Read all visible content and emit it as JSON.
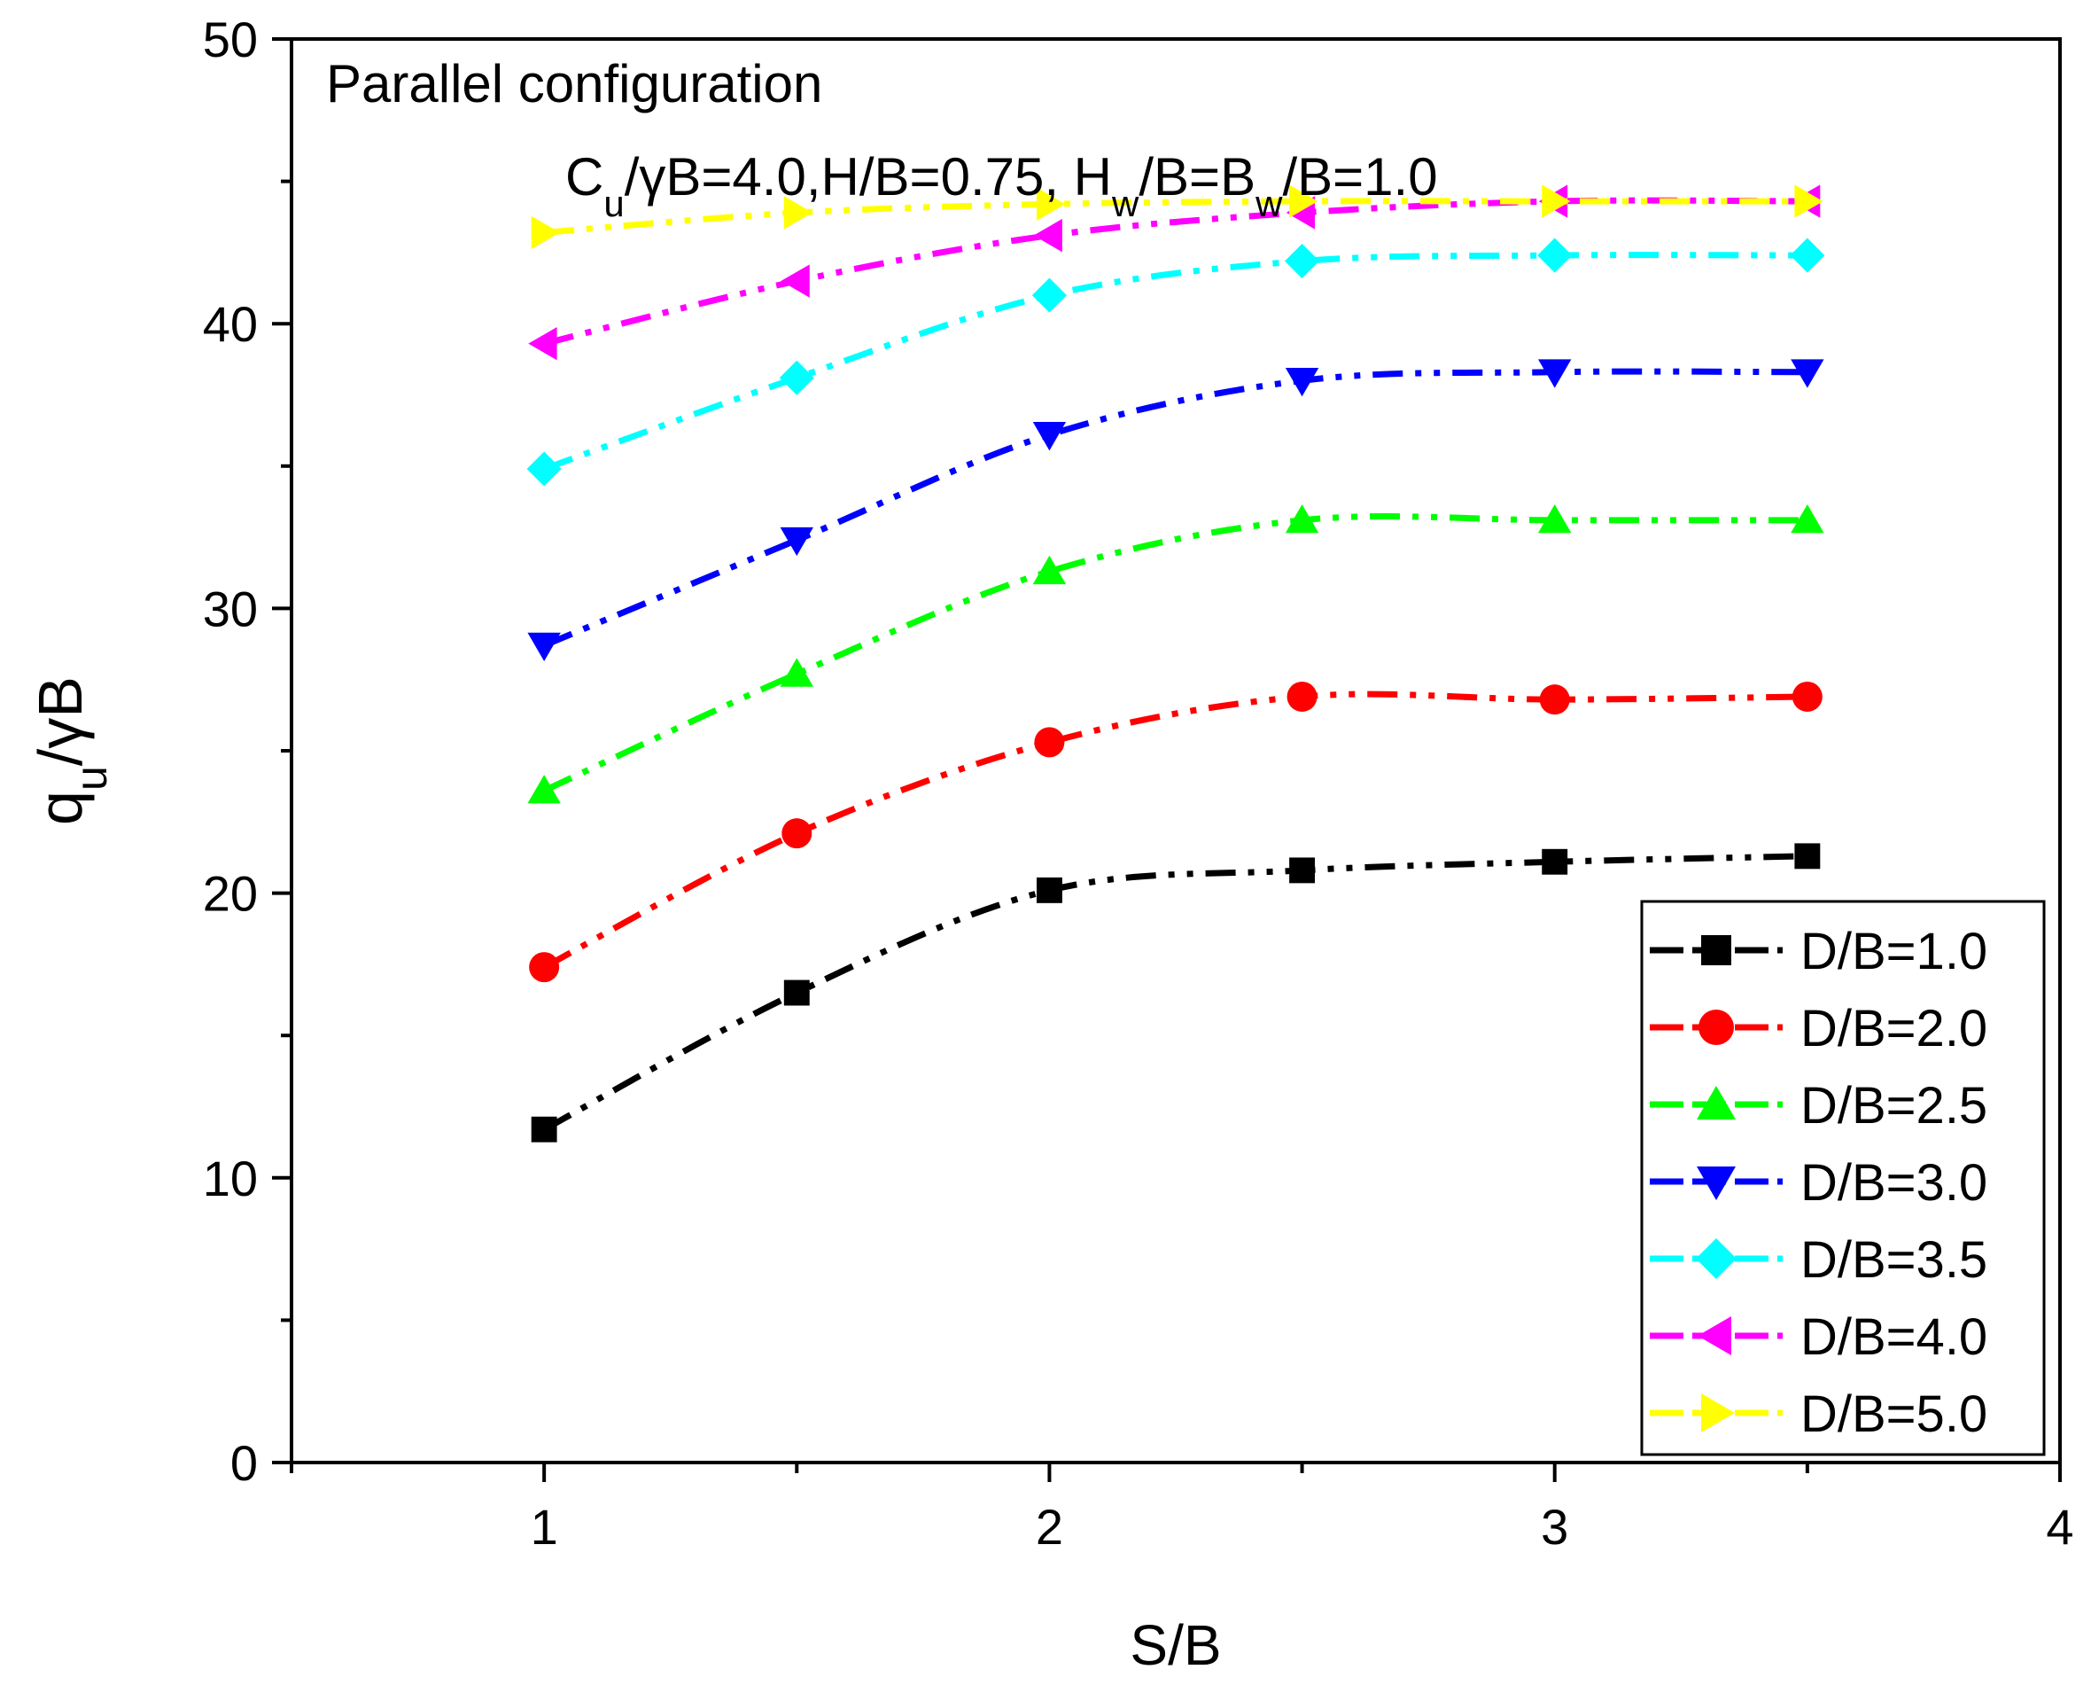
{
  "chart_data": {
    "type": "line",
    "title": "Parallel configuration",
    "subtitle": {
      "parts": [
        {
          "text": "C",
          "sub": false
        },
        {
          "text": "u",
          "sub": true
        },
        {
          "text": "/γB=4.0,H/B=0.75, H",
          "sub": false
        },
        {
          "text": "w",
          "sub": true
        },
        {
          "text": "/B=B",
          "sub": false
        },
        {
          "text": "w",
          "sub": true
        },
        {
          "text": "/B=1.0",
          "sub": false
        }
      ]
    },
    "xlabel": "S/B",
    "ylabel": {
      "parts": [
        {
          "text": "q",
          "sub": false
        },
        {
          "text": "u",
          "sub": true
        },
        {
          "text": "/γB",
          "sub": false
        }
      ]
    },
    "xlim": [
      0.5,
      4
    ],
    "ylim": [
      0,
      50
    ],
    "xticks": [
      1,
      2,
      3,
      4
    ],
    "yticks": [
      0,
      10,
      20,
      30,
      40,
      50
    ],
    "grid": false,
    "legend_position": "bottom-right",
    "x": [
      1,
      1.5,
      2,
      2.5,
      3,
      3.5
    ],
    "series": [
      {
        "name": "D/B=1.0",
        "color": "#000000",
        "marker": "square",
        "values": [
          11.7,
          16.5,
          20.1,
          20.8,
          21.1,
          21.3
        ]
      },
      {
        "name": "D/B=2.0",
        "color": "#ff0000",
        "marker": "circle",
        "values": [
          17.4,
          22.1,
          25.3,
          26.9,
          26.8,
          26.9
        ]
      },
      {
        "name": "D/B=2.5",
        "color": "#00ff00",
        "marker": "triangle-up",
        "values": [
          23.6,
          27.7,
          31.3,
          33.1,
          33.1,
          33.1
        ]
      },
      {
        "name": "D/B=3.0",
        "color": "#0000ff",
        "marker": "triangle-down",
        "values": [
          28.7,
          32.4,
          36.1,
          38.0,
          38.3,
          38.3
        ]
      },
      {
        "name": "D/B=3.5",
        "color": "#00ffff",
        "marker": "diamond",
        "values": [
          34.9,
          38.1,
          41.0,
          42.2,
          42.4,
          42.4
        ]
      },
      {
        "name": "D/B=4.0",
        "color": "#ff00ff",
        "marker": "triangle-left",
        "values": [
          39.3,
          41.5,
          43.1,
          43.9,
          44.3,
          44.3
        ]
      },
      {
        "name": "D/B=5.0",
        "color": "#ffff00",
        "marker": "triangle-right",
        "values": [
          43.2,
          43.9,
          44.2,
          44.3,
          44.3,
          44.3
        ]
      }
    ]
  }
}
